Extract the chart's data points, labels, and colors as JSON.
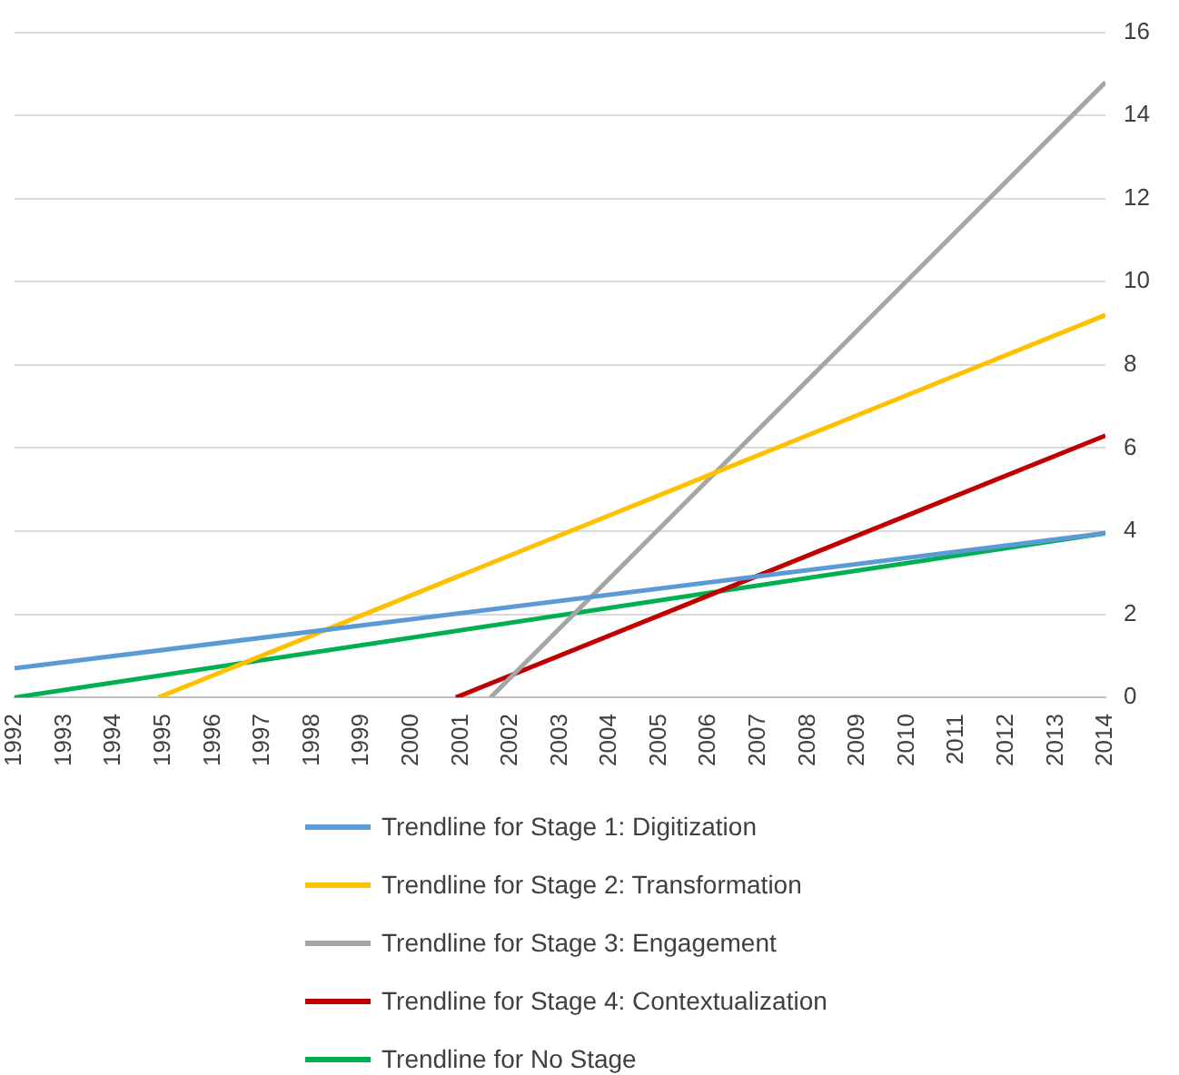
{
  "chart_data": {
    "type": "line",
    "xlim": [
      1992,
      2014
    ],
    "xticks": [
      1992,
      1993,
      1994,
      1995,
      1996,
      1997,
      1998,
      1999,
      2000,
      2001,
      2002,
      2003,
      2004,
      2005,
      2006,
      2007,
      2008,
      2009,
      2010,
      2011,
      2012,
      2013,
      2014
    ],
    "ylim": [
      0,
      16
    ],
    "yticks": [
      0,
      2,
      4,
      6,
      8,
      10,
      12,
      14,
      16
    ],
    "grid": "y",
    "legend": "bottom",
    "marker": "none",
    "line_style": "solid",
    "series": [
      {
        "name": "Trendline for Stage 1: Digitization",
        "color": "#5b9bd5",
        "x": [
          1992,
          2014
        ],
        "values": [
          0.7,
          3.95
        ]
      },
      {
        "name": "Trendline for Stage 2: Transformation",
        "color": "#ffc000",
        "x": [
          1994.9,
          2014
        ],
        "values": [
          0,
          9.2
        ]
      },
      {
        "name": "Trendline for Stage 3: Engagement",
        "color": "#a5a5a5",
        "x": [
          2001.6,
          2014
        ],
        "values": [
          0,
          14.8
        ]
      },
      {
        "name": "Trendline for Stage 4: Contextualization",
        "color": "#c00000",
        "x": [
          2000.9,
          2014
        ],
        "values": [
          0,
          6.3
        ]
      },
      {
        "name": "Trendline for No Stage",
        "color": "#00b050",
        "x": [
          1992,
          2014
        ],
        "values": [
          0,
          3.95
        ]
      }
    ]
  }
}
